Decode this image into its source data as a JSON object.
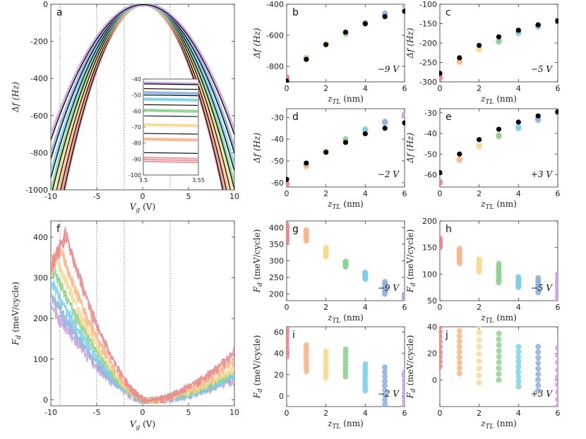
{
  "colors": {
    "red": "#e48a8e",
    "orange": "#f7b68d",
    "yellow": "#f7d994",
    "green": "#8fd18e",
    "cyan": "#7fcfe8",
    "blue": "#8fb1dc",
    "purple": "#c9a5dc",
    "black": "#000000"
  },
  "panel_a": {
    "letter": "a",
    "xlabel": "V_g (V)",
    "ylabel": "Δf (Hz)",
    "xlim": [
      -10,
      10
    ],
    "ylim": [
      -1000,
      0
    ],
    "xticks": [
      "-10",
      "-5",
      "0",
      "5",
      "10"
    ],
    "yticks": [
      "0",
      "-200",
      "-400",
      "-600",
      "-800",
      "-1000"
    ],
    "vlines": [
      -9,
      -5,
      -2,
      3
    ],
    "inset": {
      "xticks": [
        "3.5",
        "3.55"
      ],
      "yticks": [
        "-40",
        "-50",
        "-60",
        "-70",
        "-80",
        "-90",
        "-100"
      ],
      "ylim": [
        -100,
        -40
      ]
    }
  },
  "panel_f": {
    "letter": "f",
    "xlabel": "V_g (V)",
    "ylabel": "F_d (meV/cycle)",
    "xlim": [
      -10,
      10
    ],
    "ylim": [
      -15,
      440
    ],
    "xticks": [
      "-10",
      "-5",
      "0",
      "5",
      "10"
    ],
    "yticks": [
      "0",
      "100",
      "200",
      "300",
      "400"
    ],
    "vlines": [
      -9,
      -5,
      -2,
      3
    ]
  },
  "chart_data": [
    {
      "type": "scatter",
      "panel": "b",
      "voltage": "−9 V",
      "xlabel": "z_TL (nm)",
      "ylabel": "Δf (Hz)",
      "xlim": [
        0,
        6
      ],
      "ylim": [
        -900,
        -400
      ],
      "xticks": [
        "0",
        "2",
        "4",
        "6"
      ],
      "yticks": [
        "-400",
        "-600",
        "-800"
      ],
      "x": [
        0,
        1,
        2,
        3,
        4,
        5,
        6
      ],
      "colored": [
        -870,
        -745,
        -655,
        -585,
        -520,
        -460,
        -400
      ],
      "black": [
        -895,
        -755,
        -660,
        -580,
        -525,
        -480,
        -445
      ]
    },
    {
      "type": "scatter",
      "panel": "c",
      "voltage": "−5 V",
      "xlabel": "z_TL (nm)",
      "ylabel": "Δf (Hz)",
      "xlim": [
        0,
        6
      ],
      "ylim": [
        -300,
        -100
      ],
      "xticks": [
        "0",
        "2",
        "4",
        "6"
      ],
      "yticks": [
        "-100",
        "-150",
        "-200",
        "-250",
        "-300"
      ],
      "x": [
        0,
        1,
        2,
        3,
        4,
        5,
        6
      ],
      "colored": [
        -288,
        -246,
        -214,
        -194,
        -172,
        -155,
        -140
      ],
      "black": [
        -278,
        -238,
        -206,
        -184,
        -167,
        -153,
        -143
      ]
    },
    {
      "type": "scatter",
      "panel": "d",
      "voltage": "−2 V",
      "xlabel": "z_TL (nm)",
      "ylabel": "Δf (Hz)",
      "xlim": [
        0,
        6
      ],
      "ylim": [
        -62,
        -26
      ],
      "xticks": [
        "0",
        "2",
        "4",
        "6"
      ],
      "yticks": [
        "-30",
        "-40",
        "-50",
        "-60"
      ],
      "x": [
        0,
        1,
        2,
        3,
        4,
        5,
        6
      ],
      "colored": [
        -60.5,
        -52,
        -45.5,
        -40,
        -35.5,
        -32,
        -28.5
      ],
      "black": [
        -58.5,
        -51,
        -46,
        -41.5,
        -37.5,
        -35,
        -32.5
      ]
    },
    {
      "type": "scatter",
      "panel": "e",
      "voltage": "+3 V",
      "xlabel": "z_TL (nm)",
      "ylabel": "Δf (Hz)",
      "xlim": [
        0,
        6
      ],
      "ylim": [
        -66,
        -28
      ],
      "xticks": [
        "0",
        "2",
        "4",
        "6"
      ],
      "yticks": [
        "-30",
        "-40",
        "-50",
        "-60"
      ],
      "x": [
        0,
        1,
        2,
        3,
        4,
        5,
        6
      ],
      "colored": [
        -63.5,
        -52.5,
        -46,
        -41,
        -37,
        -33,
        -29.5
      ],
      "black": [
        -59,
        -50,
        -43,
        -38,
        -34.5,
        -31.5,
        -29.5
      ]
    },
    {
      "type": "scatter",
      "panel": "g",
      "voltage": "−9 V",
      "xlabel": "z_TL (nm)",
      "ylabel": "F_d (meV/cycle)",
      "xlim": [
        0,
        6
      ],
      "ylim": [
        180,
        420
      ],
      "xticks": [
        "0",
        "2",
        "4",
        "6"
      ],
      "yticks": [
        "200",
        "250",
        "300",
        "350",
        "400"
      ],
      "x": [
        0,
        1,
        2,
        3,
        4,
        5,
        6
      ],
      "min": [
        358,
        360,
        312,
        282,
        245,
        200,
        188
      ],
      "max": [
        410,
        393,
        340,
        298,
        265,
        237,
        200
      ]
    },
    {
      "type": "scatter",
      "panel": "h",
      "voltage": "−5 V",
      "xlabel": "z_TL (nm)",
      "ylabel": "F_d (meV/cycle)",
      "xlim": [
        0,
        6
      ],
      "ylim": [
        50,
        200
      ],
      "xticks": [
        "0",
        "2",
        "4",
        "6"
      ],
      "yticks": [
        "50",
        "100",
        "150",
        "200"
      ],
      "x": [
        0,
        1,
        2,
        3,
        4,
        5,
        6
      ],
      "min": [
        150,
        120,
        104,
        84,
        75,
        65,
        50
      ],
      "max": [
        168,
        148,
        128,
        120,
        95,
        93,
        100
      ]
    },
    {
      "type": "scatter",
      "panel": "i",
      "voltage": "−2 V",
      "xlabel": "z_TL (nm)",
      "ylabel": "F_d (meV/cycle)",
      "xlim": [
        0,
        6
      ],
      "ylim": [
        -10,
        65
      ],
      "xticks": [
        "0",
        "2",
        "4",
        "6"
      ],
      "yticks": [
        "0",
        "20",
        "40",
        "60"
      ],
      "x": [
        0,
        1,
        2,
        3,
        4,
        5,
        6
      ],
      "min": [
        37,
        23,
        17,
        18,
        5,
        -8,
        -9
      ],
      "max": [
        64,
        48,
        42,
        44,
        30,
        27,
        22
      ]
    },
    {
      "type": "scatter",
      "panel": "j",
      "voltage": "+3 V",
      "xlabel": "z_TL (nm)",
      "ylabel": "F_d (meV/cycle)",
      "xlim": [
        0,
        6
      ],
      "ylim": [
        -20,
        40
      ],
      "xticks": [
        "0",
        "2",
        "4",
        "6"
      ],
      "yticks": [
        "0",
        "20",
        "40"
      ],
      "x": [
        0,
        1,
        2,
        3,
        4,
        5,
        6
      ],
      "min": [
        10,
        5,
        -2,
        0,
        -5,
        -8,
        -20
      ],
      "max": [
        40,
        37,
        41,
        35,
        25,
        25,
        24
      ]
    }
  ]
}
